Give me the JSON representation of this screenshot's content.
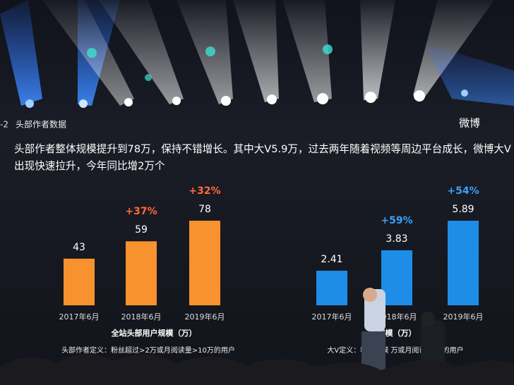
{
  "header": {
    "number": "-2",
    "section": "头部作者数据",
    "logo": "微博",
    "lines": [
      "头部作者整体规模提升到78万，保持不错增长。其中大V5.9万，过去两年随着视频等周边平台成长，微博大V",
      "出现快速拉升，今年同比增2万个"
    ]
  },
  "chart_data": [
    {
      "type": "bar",
      "title": "全站头部用户规模（万）",
      "note": "头部作者定义：粉丝超过>2万或月阅读量>10万的用户",
      "categories": [
        "2017年6月",
        "2018年6月",
        "2019年6月"
      ],
      "values": [
        43,
        59,
        78
      ],
      "growth_labels": [
        null,
        "+37%",
        "+32%"
      ],
      "color": "#f7922e",
      "growth_color": "#ff6a3d"
    },
    {
      "type": "bar",
      "title": "规模（万）",
      "note": "大V定义：粉丝规模 万或月阅读量 万的用户",
      "categories": [
        "2017年6月",
        "2018年6月",
        "2019年6月"
      ],
      "values": [
        2.41,
        3.83,
        5.89
      ],
      "growth_labels": [
        null,
        "+59%",
        "+54%"
      ],
      "color": "#1e8de8",
      "growth_color": "#3aa0ff"
    }
  ]
}
